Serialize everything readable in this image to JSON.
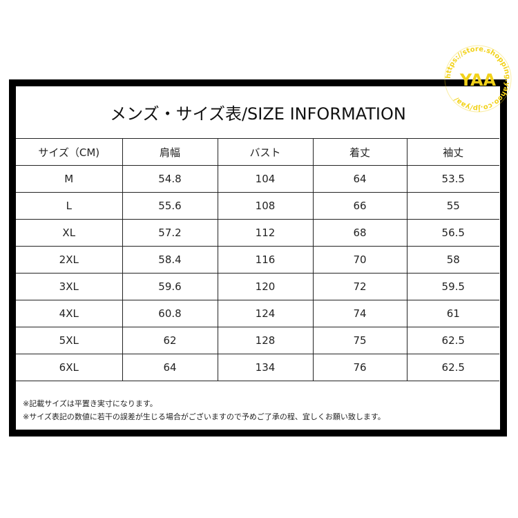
{
  "title": "メンズ・サイズ表/SIZE INFORMATION",
  "table": {
    "headers": [
      "サイズ（CM)",
      "肩幅",
      "バスト",
      "着丈",
      "袖丈"
    ],
    "rows": [
      [
        "M",
        "54.8",
        "104",
        "64",
        "53.5"
      ],
      [
        "L",
        "55.6",
        "108",
        "66",
        "55"
      ],
      [
        "XL",
        "57.2",
        "112",
        "68",
        "56.5"
      ],
      [
        "2XL",
        "58.4",
        "116",
        "70",
        "58"
      ],
      [
        "3XL",
        "59.6",
        "120",
        "72",
        "59.5"
      ],
      [
        "4XL",
        "60.8",
        "124",
        "74",
        "61"
      ],
      [
        "5XL",
        "62",
        "128",
        "75",
        "62.5"
      ],
      [
        "6XL",
        "64",
        "134",
        "76",
        "62.5"
      ]
    ]
  },
  "notes": [
    "※記載サイズは平置き実寸になります。",
    "※サイズ表記の数値に若干の誤差が生じる場合がございますので予めご了承の程、宜しくお願い致します。"
  ],
  "watermark": {
    "text": "YAA",
    "ring_text": "https://store.shopping.yahoo.co.jp/yaa/",
    "color": "#f2d21a"
  }
}
